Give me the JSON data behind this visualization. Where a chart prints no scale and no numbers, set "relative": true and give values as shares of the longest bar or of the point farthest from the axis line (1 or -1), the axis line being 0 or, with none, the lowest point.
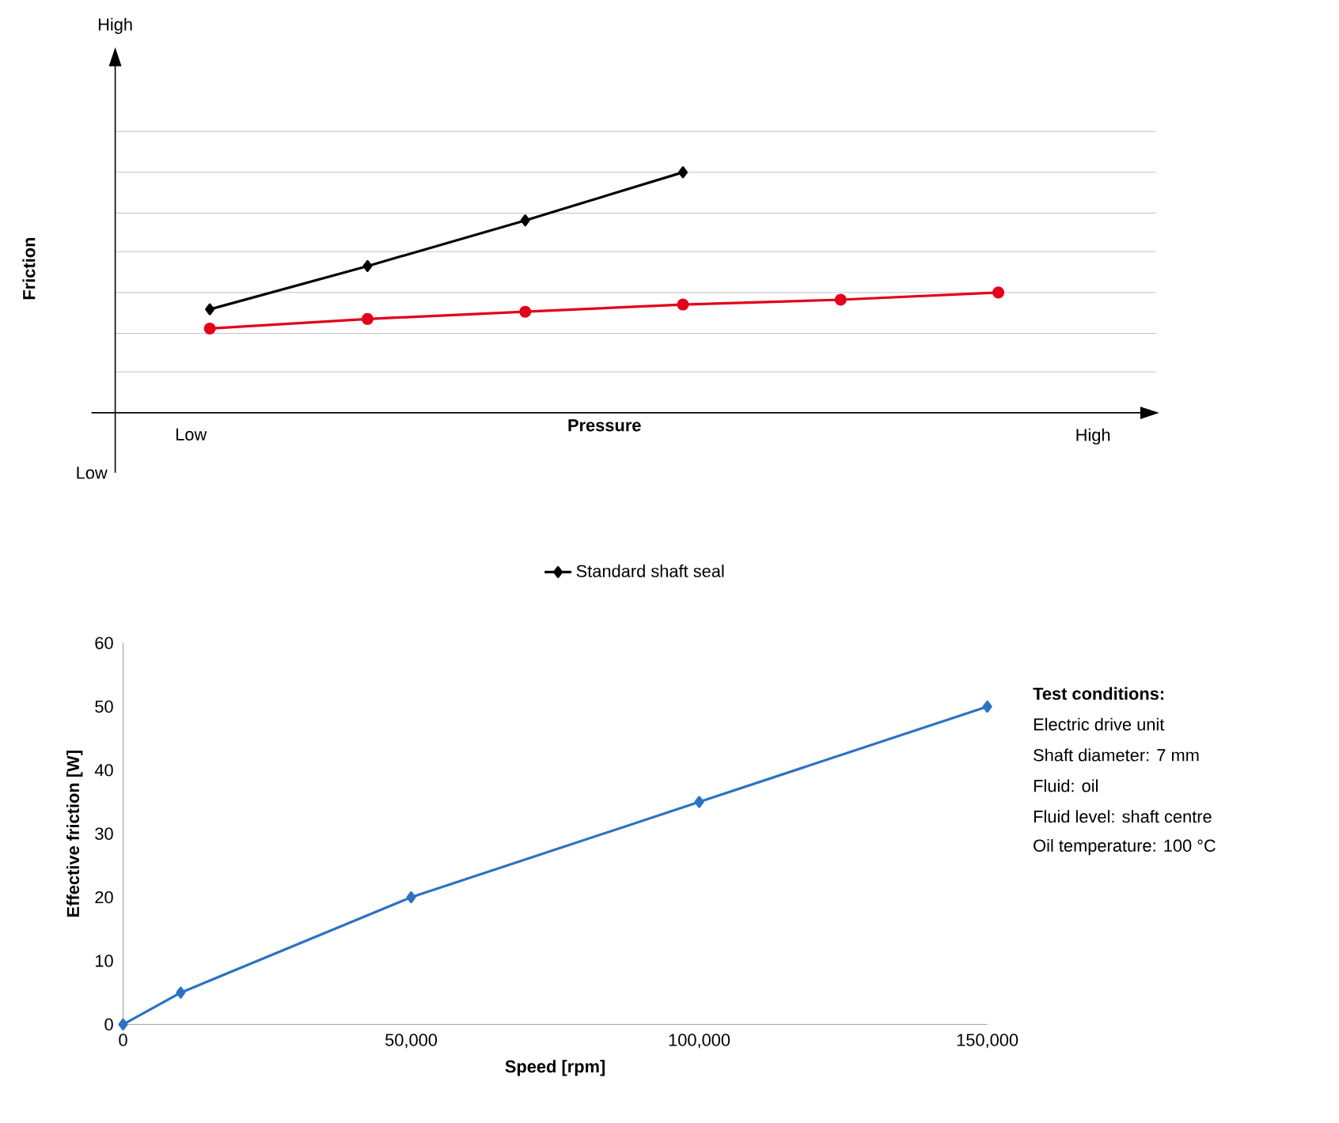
{
  "chart_data": [
    {
      "type": "line",
      "relative": true,
      "xlabel": "Pressure",
      "ylabel": "Friction",
      "categories": [
        null,
        null,
        null,
        null,
        null,
        null
      ],
      "grid": "y",
      "legend": "bottom",
      "annotations": [
        "High",
        "Low",
        "High",
        "Low"
      ],
      "series": [
        {
          "name": "Standard shaft seal",
          "color": "#000000",
          "marker": "diamond",
          "values": [
            0.43,
            0.61,
            0.8,
            1,
            null,
            null
          ]
        },
        {
          "color": "#e2001a",
          "marker": "circle",
          "values": [
            0.35,
            0.39,
            0.42,
            0.45,
            0.47,
            0.5
          ]
        }
      ]
    },
    {
      "type": "line",
      "xlabel": "Speed [rpm]",
      "ylabel": "Effective friction [W]",
      "x": [
        0,
        10000,
        50000,
        100000,
        150000
      ],
      "xlim": [
        0,
        150000
      ],
      "xticks": [
        0,
        {
          "value": 50000,
          "label": "50,000"
        },
        {
          "value": 100000,
          "label": "100,000"
        },
        {
          "value": 150000,
          "label": "150,000"
        }
      ],
      "ylim": [
        0,
        60
      ],
      "yticks": [
        0,
        10,
        20,
        30,
        40,
        50,
        60
      ],
      "annotations": [
        "Test conditions:",
        "Electric drive unit",
        "Shaft diameter: 7 mm",
        "Fluid: oil",
        "Fluid level: shaft centre",
        "Oil temperature: 100 °C"
      ],
      "series": [
        {
          "color": "#2b72c2",
          "marker": "diamond",
          "values": [
            0,
            5,
            20,
            35,
            50
          ]
        }
      ]
    }
  ]
}
